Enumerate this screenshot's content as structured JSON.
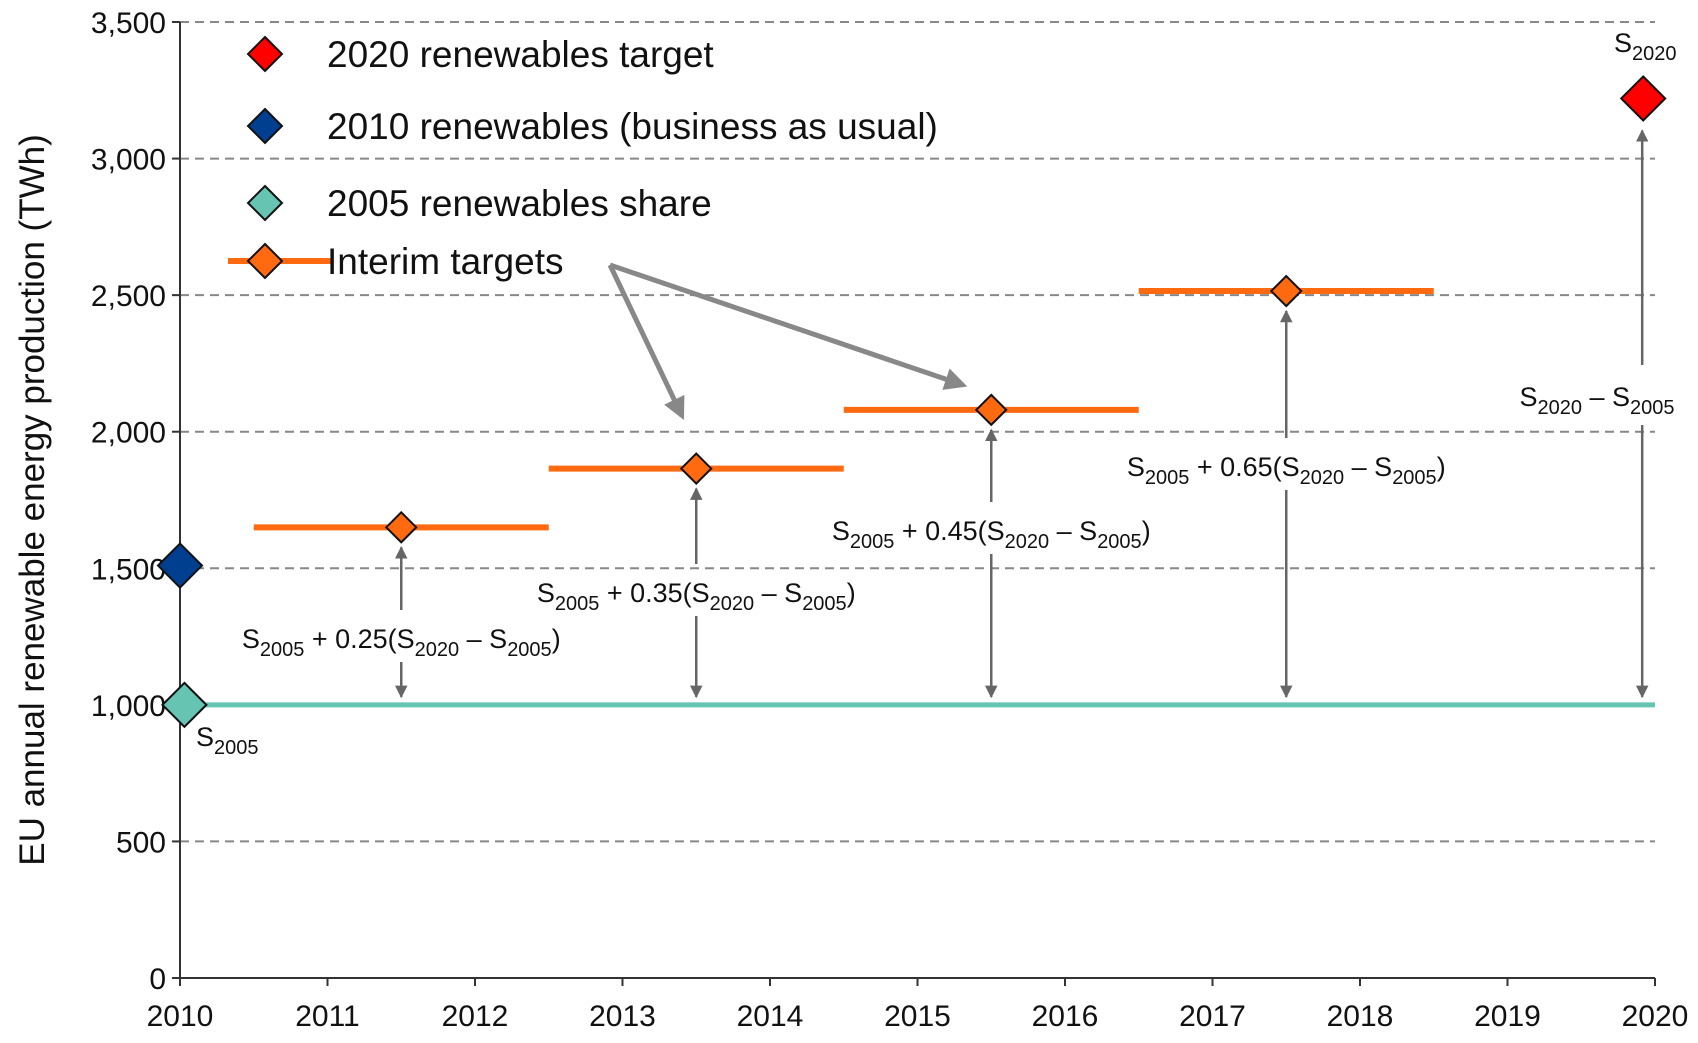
{
  "chart_data": {
    "type": "scatter",
    "y_label": "EU annual renewable energy production (TWh)",
    "xlim": [
      2010,
      2020
    ],
    "xticks": [
      2010,
      2011,
      2012,
      2013,
      2014,
      2015,
      2016,
      2017,
      2018,
      2019,
      2020
    ],
    "ylim": [
      0,
      3500
    ],
    "yticks": [
      0,
      500,
      {
        "value": 1000,
        "label": "1,000"
      },
      {
        "value": 1500,
        "label": "1,500"
      },
      {
        "value": 2000,
        "label": "2,000"
      },
      {
        "value": 2500,
        "label": "2,500"
      },
      {
        "value": 3000,
        "label": "3,000"
      },
      {
        "value": 3500,
        "label": "3,500"
      }
    ],
    "grid": true,
    "legend": "upper left",
    "series": [
      {
        "name": "2020 renewables target",
        "color": "#ff0000",
        "x": [
          2019.92
        ],
        "values": [
          3220
        ]
      },
      {
        "name": "2010 renewables (business as usual)",
        "color": "#003f8f",
        "x": [
          2010
        ],
        "values": [
          1510
        ]
      },
      {
        "name": "2005 renewables share",
        "color": "#66c4b2",
        "x": [
          2010.03
        ],
        "values": [
          1000
        ],
        "hline": true
      },
      {
        "name": "Interim targets",
        "color": "#ff6a10",
        "x": [
          2011.5,
          2013.5,
          2015.5,
          2017.5
        ],
        "values": [
          1650,
          1865,
          2080,
          2515
        ],
        "span": 2
      }
    ],
    "annotations": [
      {
        "parts": [
          "S",
          "2005",
          " + 0.25(S",
          "2020",
          " – S",
          "2005",
          ")"
        ]
      },
      {
        "parts": [
          "S",
          "2005",
          " + 0.35(S",
          "2020",
          " – S",
          "2005",
          ")"
        ]
      },
      {
        "parts": [
          "S",
          "2005",
          " + 0.45(S",
          "2020",
          " – S",
          "2005",
          ")"
        ]
      },
      {
        "parts": [
          "S",
          "2005",
          " + 0.65(S",
          "2020",
          " – S",
          "2005",
          ")"
        ]
      },
      {
        "parts": [
          "S",
          "2020",
          " – S",
          "2005"
        ]
      },
      {
        "parts": [
          "S",
          "2005"
        ]
      },
      {
        "parts": [
          "S",
          "2020"
        ]
      }
    ]
  }
}
